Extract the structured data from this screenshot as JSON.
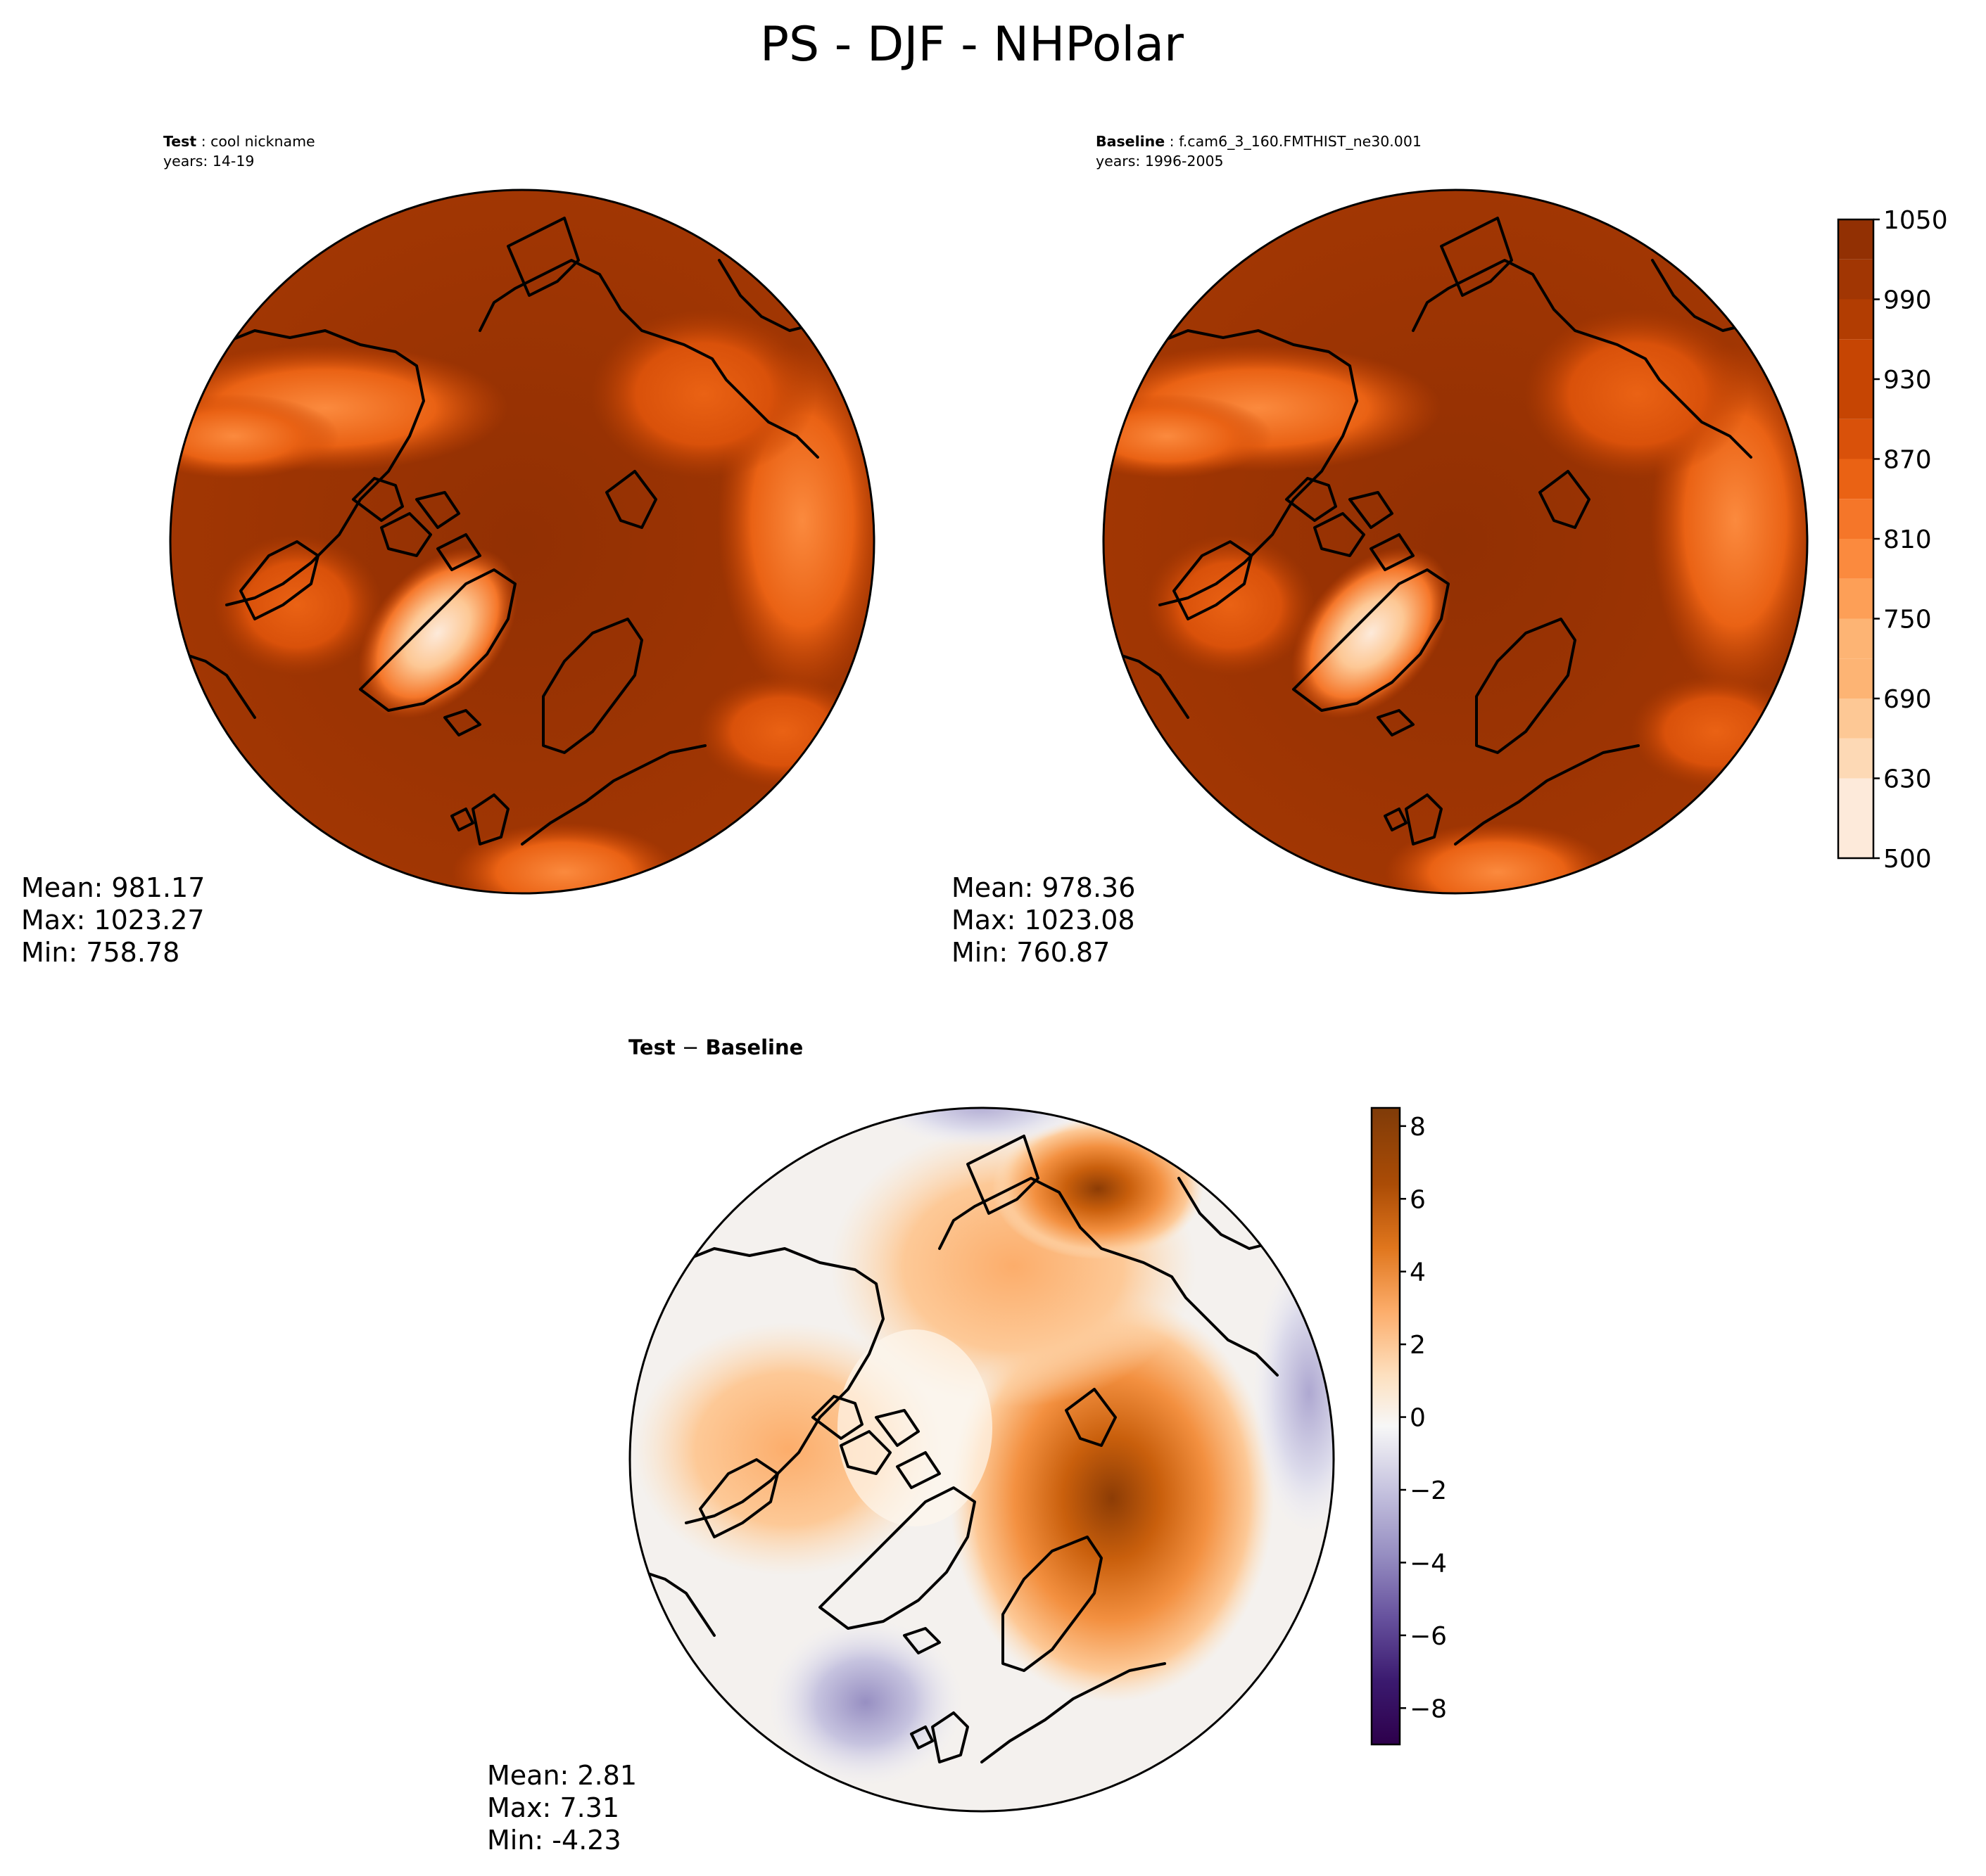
{
  "figure": {
    "title": "PS - DJF - NHPolar"
  },
  "panels": {
    "test": {
      "name_label": "Test",
      "name_value": " : cool nickname",
      "years_label": "years: 14-19",
      "stats": {
        "mean": "Mean: 981.17",
        "max": "Max: 1023.27",
        "min": "Min: 758.78"
      }
    },
    "baseline": {
      "name_label": "Baseline",
      "name_value": " : f.cam6_3_160.FMTHIST_ne30.001",
      "years_label": "years: 1996-2005",
      "stats": {
        "mean": "Mean: 978.36",
        "max": "Max: 1023.08",
        "min": "Min: 760.87"
      }
    },
    "difference": {
      "title_left": "Test",
      "title_op": " − ",
      "title_right": "Baseline",
      "stats": {
        "mean": "Mean:  2.81",
        "max": "Max:  7.31",
        "min": "Min: -4.23"
      }
    }
  },
  "colors": {
    "ps_cmap": [
      "#fdeada",
      "#fdd9b5",
      "#fdc895",
      "#fdb474",
      "#fd9f57",
      "#fb8a3e",
      "#f57629",
      "#ea6214",
      "#d9510a",
      "#c64503",
      "#b23d02",
      "#a13603",
      "#923003"
    ],
    "diff_pos": [
      "#fdf0e0",
      "#fde0bf",
      "#fdc997",
      "#fcad6b",
      "#f39040",
      "#e0761d",
      "#c95f0c",
      "#ab4c06",
      "#8c3c05",
      "#7f3b08"
    ],
    "diff_neg": [
      "#eeeef6",
      "#dcdbeb",
      "#c6c3df",
      "#aea8d1",
      "#978fc2",
      "#7f72b0",
      "#67529e",
      "#51348b",
      "#3b1a6f",
      "#2d004b"
    ]
  },
  "chart_data": [
    {
      "type": "heatmap",
      "panel": "test",
      "projection": "North Polar Stereographic",
      "variable": "PS",
      "mean": 981.17,
      "max": 1023.27,
      "min": 758.78
    },
    {
      "type": "heatmap",
      "panel": "baseline",
      "projection": "North Polar Stereographic",
      "variable": "PS",
      "mean": 978.36,
      "max": 1023.08,
      "min": 760.87,
      "colorbar": {
        "range": [
          500,
          1050
        ],
        "ticks": [
          500,
          630,
          690,
          750,
          810,
          870,
          930,
          990,
          1050
        ],
        "tick_labels": [
          "500",
          "630",
          "690",
          "750",
          "810",
          "870",
          "930",
          "990",
          "1050"
        ]
      }
    },
    {
      "type": "heatmap",
      "panel": "difference",
      "projection": "North Polar Stereographic",
      "mean": 2.81,
      "max": 7.31,
      "min": -4.23,
      "colorbar": {
        "range": [
          -9,
          8.5
        ],
        "ticks": [
          -8,
          -6,
          -4,
          -2,
          0,
          2,
          4,
          6,
          8
        ],
        "tick_labels": [
          "−8",
          "−6",
          "−4",
          "−2",
          "0",
          "2",
          "4",
          "6",
          "8"
        ]
      }
    }
  ]
}
